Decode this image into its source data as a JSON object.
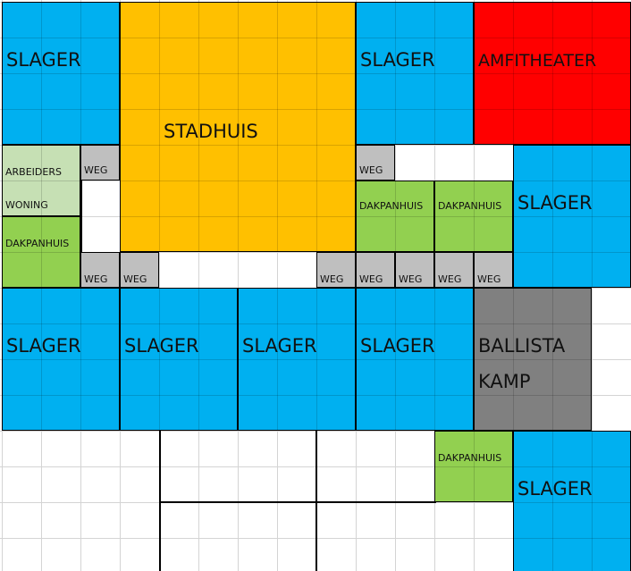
{
  "colors": {
    "slager": "#00b0f0",
    "stadhuis": "#ffc000",
    "amfitheater": "#ff0000",
    "arbeiders": "#c6e0b4",
    "dakpanhuis": "#92d050",
    "weg": "#bfbfbf",
    "ballista": "#808080",
    "empty": "#ffffff"
  },
  "labels": {
    "slager": "SLAGER",
    "stadhuis": "STADHUIS",
    "amfitheater": "AMFITHEATER",
    "arbeiders_line1": "ARBEIDERS",
    "arbeiders_line2": "WONING",
    "dakpanhuis": "DAKPANHUIS",
    "weg": "WEG",
    "ballista_line1": "BALLISTA",
    "ballista_line2": "KAMP"
  }
}
